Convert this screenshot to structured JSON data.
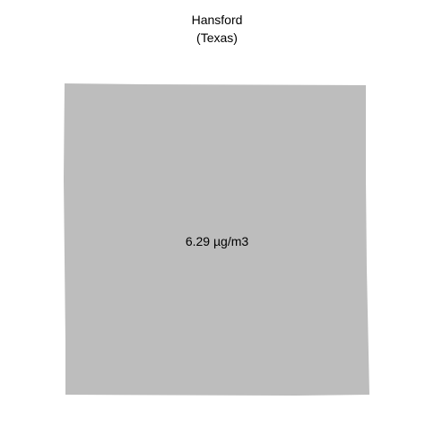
{
  "map": {
    "title": "Hansford",
    "subtitle": "(Texas)",
    "region": {
      "name": "Hansford",
      "value_label": "6.29 µg/m3",
      "fill_color": "#bdbdbd"
    }
  }
}
